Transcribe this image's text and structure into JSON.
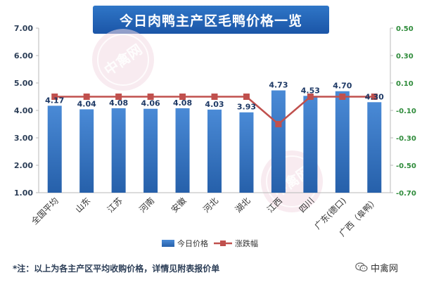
{
  "chart_data": {
    "type": "bar",
    "title": "今日肉鸭主产区毛鸭价格一览",
    "categories": [
      "全国平均",
      "山东",
      "江苏",
      "河南",
      "安徽",
      "河北",
      "湖北",
      "江西",
      "四川",
      "广东(德口)",
      "广西（阜鸭）"
    ],
    "series": [
      {
        "name": "今日价格",
        "type": "bar",
        "axis": "left",
        "values": [
          4.17,
          4.04,
          4.08,
          4.06,
          4.08,
          4.03,
          3.93,
          4.73,
          4.53,
          4.7,
          4.3
        ],
        "labels": [
          "4.17",
          "4.04",
          "4.08",
          "4.06",
          "4.08",
          "4.03",
          "3.93",
          "4.73",
          "4.53",
          "4.70",
          "4.30"
        ],
        "color": "#2f6fb9"
      },
      {
        "name": "涨跌幅",
        "type": "line",
        "axis": "right",
        "values": [
          0.0,
          0.0,
          0.0,
          0.0,
          0.0,
          0.0,
          0.0,
          -0.2,
          0.0,
          0.0,
          0.0
        ],
        "color": "#c0504d"
      }
    ],
    "y_left": {
      "range": [
        1.0,
        7.0
      ],
      "ticks": [
        "1.00",
        "2.00",
        "3.00",
        "4.00",
        "5.00",
        "6.00",
        "7.00"
      ],
      "color": "#2c3e57"
    },
    "y_right": {
      "range": [
        -0.7,
        0.5
      ],
      "ticks": [
        "-0.70",
        "-0.50",
        "-0.30",
        "-0.10",
        "0.10",
        "0.30",
        "0.50"
      ],
      "color": "#2e8b3a"
    },
    "legend_position": "bottom",
    "grid": false
  },
  "footnote": "*注：以上为各主产区平均收购价格，详情见附表报价单",
  "brand": "中禽网",
  "watermark": "中禽网",
  "colors": {
    "title_bg": "#2366b4",
    "bar": "#2f6fb9",
    "line": "#c0504d",
    "left_axis": "#2c3e57",
    "right_axis": "#2e8b3a"
  }
}
